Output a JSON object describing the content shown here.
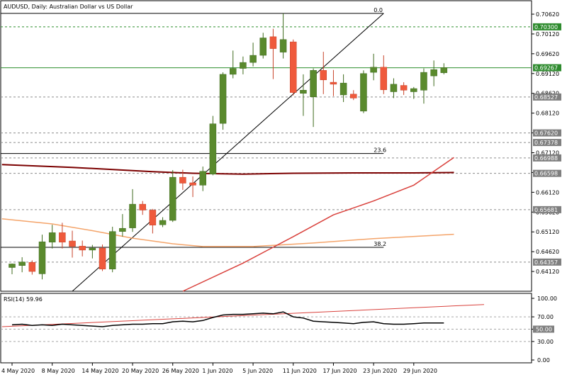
{
  "chart_data": {
    "type": "candlestick",
    "title": "AUDUSD, Daily:  Australian Dollar vs US Dollar",
    "symbol": "AUDUSD",
    "timeframe": "Daily",
    "price_range": [
      0.6362,
      0.7096
    ],
    "price_ticks": [
      "0.70620",
      "0.70120",
      "0.69620",
      "0.69120",
      "0.68620",
      "0.68120",
      "0.67620",
      "0.67120",
      "0.66620",
      "0.66120",
      "0.65620",
      "0.65120",
      "0.64620",
      "0.64120"
    ],
    "price_tags": [
      {
        "value": 0.703,
        "label": "0.70300",
        "kind": "level"
      },
      {
        "value": 0.69267,
        "label": "0.69267",
        "kind": "current"
      },
      {
        "value": 0.68527,
        "label": "0.68527",
        "kind": "level"
      },
      {
        "value": 0.67378,
        "label": "0.67378",
        "kind": "level"
      },
      {
        "value": 0.6762,
        "label": "0.67620",
        "kind": "level"
      },
      {
        "value": 0.66988,
        "label": "0.66988",
        "kind": "level"
      },
      {
        "value": 0.66598,
        "label": "0.66598",
        "kind": "level"
      },
      {
        "value": 0.65681,
        "label": "0.65681",
        "kind": "level"
      },
      {
        "value": 0.64357,
        "label": "0.64357",
        "kind": "level"
      }
    ],
    "x_labels": [
      {
        "label": "4 May 2020",
        "index": 0
      },
      {
        "label": "8 May 2020",
        "index": 4
      },
      {
        "label": "14 May 2020",
        "index": 8
      },
      {
        "label": "20 May 2020",
        "index": 12
      },
      {
        "label": "26 May 2020",
        "index": 16
      },
      {
        "label": "1 Jun 2020",
        "index": 20
      },
      {
        "label": "5 Jun 2020",
        "index": 24
      },
      {
        "label": "11 Jun 2020",
        "index": 28
      },
      {
        "label": "17 Jun 2020",
        "index": 32
      },
      {
        "label": "23 Jun 2020",
        "index": 36
      },
      {
        "label": "29 Jun 2020",
        "index": 40
      }
    ],
    "candles": [
      {
        "o": 0.6422,
        "h": 0.6432,
        "l": 0.6405,
        "c": 0.6431
      },
      {
        "o": 0.6427,
        "h": 0.6448,
        "l": 0.641,
        "c": 0.6436
      },
      {
        "o": 0.6435,
        "h": 0.644,
        "l": 0.6404,
        "c": 0.6412
      },
      {
        "o": 0.6406,
        "h": 0.6505,
        "l": 0.6392,
        "c": 0.6487
      },
      {
        "o": 0.6486,
        "h": 0.653,
        "l": 0.647,
        "c": 0.651
      },
      {
        "o": 0.651,
        "h": 0.6535,
        "l": 0.647,
        "c": 0.6486
      },
      {
        "o": 0.6489,
        "h": 0.6515,
        "l": 0.6447,
        "c": 0.6475
      },
      {
        "o": 0.6476,
        "h": 0.649,
        "l": 0.645,
        "c": 0.6466
      },
      {
        "o": 0.6466,
        "h": 0.6479,
        "l": 0.6445,
        "c": 0.6471
      },
      {
        "o": 0.6471,
        "h": 0.648,
        "l": 0.6413,
        "c": 0.6418
      },
      {
        "o": 0.6418,
        "h": 0.6525,
        "l": 0.641,
        "c": 0.6513
      },
      {
        "o": 0.6513,
        "h": 0.6557,
        "l": 0.65,
        "c": 0.6521
      },
      {
        "o": 0.6522,
        "h": 0.662,
        "l": 0.6512,
        "c": 0.6582
      },
      {
        "o": 0.6582,
        "h": 0.659,
        "l": 0.6555,
        "c": 0.6567
      },
      {
        "o": 0.6567,
        "h": 0.657,
        "l": 0.6508,
        "c": 0.6529
      },
      {
        "o": 0.653,
        "h": 0.6549,
        "l": 0.6524,
        "c": 0.6541
      },
      {
        "o": 0.6541,
        "h": 0.6668,
        "l": 0.6537,
        "c": 0.665
      },
      {
        "o": 0.665,
        "h": 0.6669,
        "l": 0.6618,
        "c": 0.6635
      },
      {
        "o": 0.6636,
        "h": 0.6652,
        "l": 0.66,
        "c": 0.663
      },
      {
        "o": 0.663,
        "h": 0.6677,
        "l": 0.6615,
        "c": 0.6665
      },
      {
        "o": 0.6658,
        "h": 0.6805,
        "l": 0.6655,
        "c": 0.6785
      },
      {
        "o": 0.6786,
        "h": 0.6915,
        "l": 0.677,
        "c": 0.691
      },
      {
        "o": 0.691,
        "h": 0.697,
        "l": 0.69,
        "c": 0.6925
      },
      {
        "o": 0.6925,
        "h": 0.6955,
        "l": 0.691,
        "c": 0.694
      },
      {
        "o": 0.694,
        "h": 0.699,
        "l": 0.693,
        "c": 0.6958
      },
      {
        "o": 0.6958,
        "h": 0.7015,
        "l": 0.695,
        "c": 0.7002
      },
      {
        "o": 0.7005,
        "h": 0.7025,
        "l": 0.6898,
        "c": 0.6975
      },
      {
        "o": 0.6966,
        "h": 0.7064,
        "l": 0.695,
        "c": 0.6998
      },
      {
        "o": 0.6992,
        "h": 0.6998,
        "l": 0.6857,
        "c": 0.6864
      },
      {
        "o": 0.6862,
        "h": 0.691,
        "l": 0.6805,
        "c": 0.687
      },
      {
        "o": 0.6853,
        "h": 0.6925,
        "l": 0.6777,
        "c": 0.692
      },
      {
        "o": 0.692,
        "h": 0.6967,
        "l": 0.686,
        "c": 0.6896
      },
      {
        "o": 0.689,
        "h": 0.6921,
        "l": 0.6855,
        "c": 0.6885
      },
      {
        "o": 0.6858,
        "h": 0.691,
        "l": 0.684,
        "c": 0.6888
      },
      {
        "o": 0.686,
        "h": 0.687,
        "l": 0.6845,
        "c": 0.685
      },
      {
        "o": 0.6817,
        "h": 0.692,
        "l": 0.6812,
        "c": 0.6912
      },
      {
        "o": 0.6915,
        "h": 0.6962,
        "l": 0.6895,
        "c": 0.6928
      },
      {
        "o": 0.6928,
        "h": 0.6958,
        "l": 0.686,
        "c": 0.6871
      },
      {
        "o": 0.6866,
        "h": 0.69,
        "l": 0.685,
        "c": 0.6885
      },
      {
        "o": 0.6882,
        "h": 0.689,
        "l": 0.6858,
        "c": 0.687
      },
      {
        "o": 0.6866,
        "h": 0.6878,
        "l": 0.6848,
        "c": 0.6874
      },
      {
        "o": 0.687,
        "h": 0.6925,
        "l": 0.6836,
        "c": 0.6915
      },
      {
        "o": 0.6906,
        "h": 0.6945,
        "l": 0.688,
        "c": 0.6922
      },
      {
        "o": 0.6914,
        "h": 0.6938,
        "l": 0.691,
        "c": 0.6927
      }
    ],
    "horizontal_levels": [
      {
        "value": 0.703,
        "style": "dashed-green"
      },
      {
        "value": 0.68527,
        "style": "dashed-gray"
      },
      {
        "value": 0.67378,
        "style": "dashed-gray"
      },
      {
        "value": 0.6762,
        "style": "dashed-gray"
      },
      {
        "value": 0.66988,
        "style": "dashed-gray"
      },
      {
        "value": 0.66598,
        "style": "dashed-gray"
      },
      {
        "value": 0.65681,
        "style": "dashed-gray"
      },
      {
        "value": 0.64357,
        "style": "dashed-gray"
      }
    ],
    "fibonacci": {
      "from_index": 6,
      "from_price": 0.6362,
      "to_index": 37,
      "to_price": 0.7064,
      "levels": [
        {
          "label": "0.0",
          "value": 0.7064
        },
        {
          "label": "23.6",
          "value": 0.671
        },
        {
          "label": "38.2",
          "value": 0.6473
        }
      ]
    },
    "moving_averages": [
      {
        "color": "#7b0000",
        "points": [
          [
            -1,
            0.6682
          ],
          [
            6,
            0.6675
          ],
          [
            14,
            0.6664
          ],
          [
            18,
            0.666
          ],
          [
            23,
            0.6658
          ],
          [
            28,
            0.666
          ],
          [
            34,
            0.6661
          ],
          [
            40,
            0.6661
          ],
          [
            44,
            0.6662
          ]
        ]
      },
      {
        "color": "#f4a46a",
        "points": [
          [
            -1,
            0.6545
          ],
          [
            4,
            0.6532
          ],
          [
            8,
            0.6515
          ],
          [
            12,
            0.6496
          ],
          [
            16,
            0.6482
          ],
          [
            19,
            0.6475
          ],
          [
            24,
            0.6475
          ],
          [
            30,
            0.6484
          ],
          [
            36,
            0.6495
          ],
          [
            44,
            0.6506
          ]
        ]
      },
      {
        "color": "#d9413c",
        "points": [
          [
            17,
            0.6362
          ],
          [
            23,
            0.6433
          ],
          [
            28,
            0.65
          ],
          [
            32,
            0.6555
          ],
          [
            36,
            0.659
          ],
          [
            40,
            0.663
          ],
          [
            44,
            0.67
          ]
        ]
      }
    ],
    "rsi": {
      "label": "RSI(14) 59.96",
      "range": [
        0,
        100
      ],
      "ticks": [
        "100.00",
        "70.00",
        "50.00",
        "30.00",
        "0.00"
      ],
      "level_tag": "50.00",
      "values": [
        57,
        58,
        56,
        57,
        56,
        58,
        57,
        56,
        55,
        54,
        56,
        57,
        58,
        58,
        59,
        59,
        62,
        63,
        62,
        64,
        69,
        73,
        74,
        74,
        75,
        76,
        75,
        78,
        70,
        68,
        63,
        62,
        61,
        60,
        59,
        61,
        62,
        59,
        58,
        58,
        59,
        60,
        60,
        60
      ],
      "trendline": {
        "from": [
          -1,
          54
        ],
        "to": [
          47,
          90
        ]
      }
    },
    "grid": true
  }
}
